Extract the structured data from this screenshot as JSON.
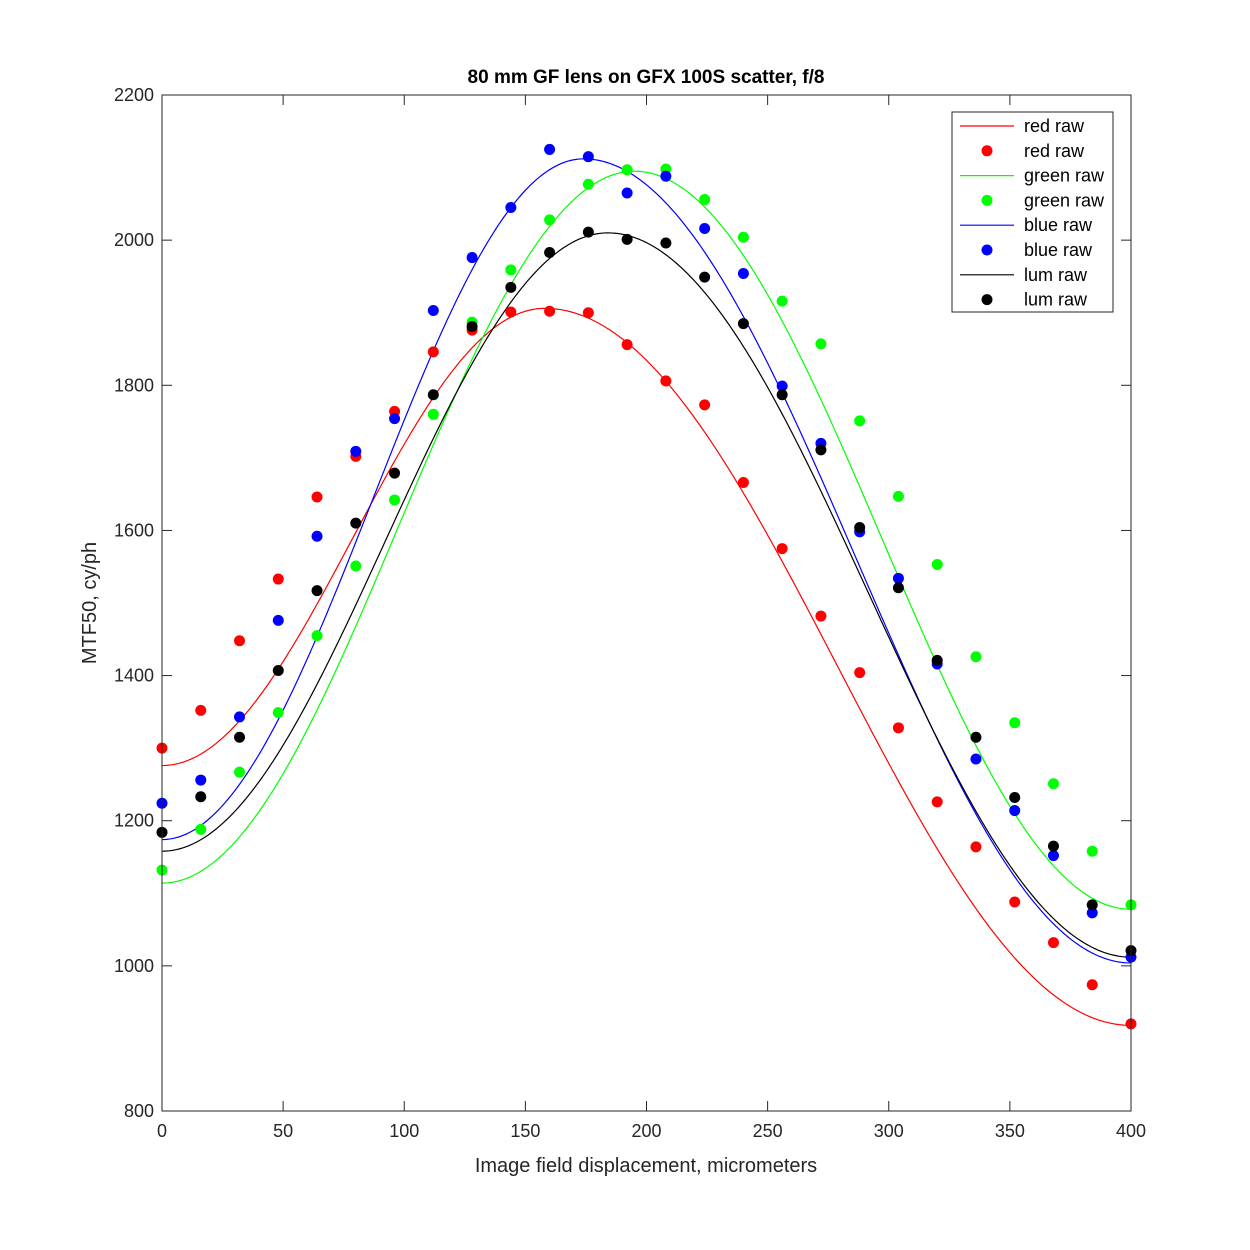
{
  "chart_data": {
    "type": "scatter",
    "title": "80 mm GF lens on GFX 100S scatter, f/8",
    "xlabel": "Image field displacement, micrometers",
    "ylabel": "MTF50, cy/ph",
    "xlim": [
      0,
      400
    ],
    "ylim": [
      800,
      2200
    ],
    "xticks": [
      0,
      50,
      100,
      150,
      200,
      250,
      300,
      350,
      400
    ],
    "yticks": [
      800,
      1000,
      1200,
      1400,
      1600,
      1800,
      2000,
      2200
    ],
    "xtick_labels": [
      "0",
      "50",
      "100",
      "150",
      "200",
      "250",
      "300",
      "350",
      "400"
    ],
    "ytick_labels": [
      "800",
      "1000",
      "1200",
      "1400",
      "1600",
      "1800",
      "2000",
      "2200"
    ],
    "grid": false,
    "legend_position": "top-right",
    "x": [
      0,
      16,
      32,
      48,
      64,
      80,
      96,
      112,
      128,
      144,
      160,
      176,
      192,
      208,
      224,
      240,
      256,
      272,
      288,
      304,
      320,
      336,
      352,
      368,
      384,
      400
    ],
    "series": [
      {
        "name": "red raw",
        "color": "#ff0000",
        "values": [
          1300,
          1352,
          1448,
          1533,
          1646,
          1702,
          1764,
          1846,
          1876,
          1901,
          1902,
          1900,
          1856,
          1806,
          1773,
          1666,
          1575,
          1482,
          1404,
          1328,
          1226,
          1164,
          1088,
          1032,
          974,
          920
        ],
        "fit": {
          "name": "red raw",
          "peak_x": 158,
          "peak_y": 1906,
          "start_y": 1276,
          "end_y": 918
        }
      },
      {
        "name": "green raw",
        "color": "#00ff00",
        "values": [
          1132,
          1188,
          1267,
          1349,
          1455,
          1551,
          1642,
          1760,
          1887,
          1959,
          2028,
          2077,
          2097,
          2098,
          2056,
          2004,
          1916,
          1857,
          1751,
          1647,
          1553,
          1426,
          1335,
          1251,
          1158,
          1084
        ],
        "fit": {
          "name": "green raw",
          "peak_x": 195,
          "peak_y": 2095,
          "start_y": 1114,
          "end_y": 1078
        }
      },
      {
        "name": "blue raw",
        "color": "#0000ff",
        "values": [
          1224,
          1256,
          1343,
          1476,
          1592,
          1709,
          1754,
          1903,
          1976,
          2045,
          2125,
          2115,
          2065,
          2088,
          2016,
          1954,
          1799,
          1720,
          1598,
          1534,
          1416,
          1285,
          1214,
          1152,
          1073,
          1012
        ],
        "fit": {
          "name": "blue raw",
          "peak_x": 174,
          "peak_y": 2112,
          "start_y": 1174,
          "end_y": 1004
        }
      },
      {
        "name": "lum raw",
        "color": "#000000",
        "values": [
          1184,
          1233,
          1315,
          1407,
          1517,
          1610,
          1679,
          1787,
          1881,
          1935,
          1983,
          2011,
          2001,
          1996,
          1949,
          1885,
          1787,
          1711,
          1604,
          1521,
          1421,
          1315,
          1232,
          1165,
          1084,
          1021
        ],
        "fit": {
          "name": "lum raw",
          "peak_x": 184,
          "peak_y": 2010,
          "start_y": 1158,
          "end_y": 1012
        }
      }
    ],
    "legend": [
      "red raw",
      "red raw",
      "green raw",
      "green raw",
      "blue raw",
      "blue raw",
      "lum raw",
      "lum raw"
    ]
  }
}
